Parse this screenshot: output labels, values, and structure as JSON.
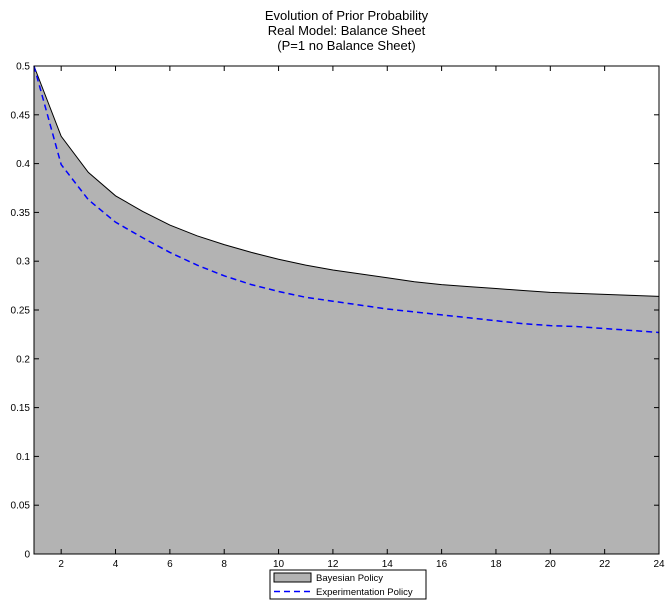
{
  "chart_data": {
    "type": "area",
    "title_lines": [
      "Evolution of Prior Probability",
      "Real Model: Balance Sheet",
      "(P=1 no Balance Sheet)"
    ],
    "xlabel": "",
    "ylabel": "",
    "xlim": [
      1,
      24
    ],
    "ylim": [
      0,
      0.5
    ],
    "xticks": [
      2,
      4,
      6,
      8,
      10,
      12,
      14,
      16,
      18,
      20,
      22,
      24
    ],
    "yticks": [
      0,
      0.05,
      0.1,
      0.15,
      0.2,
      0.25,
      0.3,
      0.35,
      0.4,
      0.45,
      0.5
    ],
    "x": [
      1,
      2,
      3,
      4,
      5,
      6,
      7,
      8,
      9,
      10,
      11,
      12,
      13,
      14,
      15,
      16,
      17,
      18,
      19,
      20,
      21,
      22,
      23,
      24
    ],
    "series": [
      {
        "name": "Bayesian Policy",
        "style": "filled-area",
        "fill": "#b3b3b3",
        "line_color": "#000000",
        "values": [
          0.5,
          0.428,
          0.391,
          0.367,
          0.351,
          0.337,
          0.326,
          0.317,
          0.309,
          0.302,
          0.296,
          0.291,
          0.287,
          0.283,
          0.279,
          0.276,
          0.274,
          0.272,
          0.27,
          0.268,
          0.267,
          0.266,
          0.265,
          0.264
        ]
      },
      {
        "name": "Experimentation Policy",
        "style": "dashed-line",
        "line_color": "#0000ff",
        "values": [
          0.5,
          0.399,
          0.363,
          0.34,
          0.324,
          0.309,
          0.296,
          0.285,
          0.276,
          0.269,
          0.263,
          0.259,
          0.255,
          0.251,
          0.248,
          0.245,
          0.242,
          0.239,
          0.236,
          0.234,
          0.233,
          0.231,
          0.229,
          0.227
        ]
      }
    ],
    "grid": false,
    "legend_position": "bottom-center"
  }
}
